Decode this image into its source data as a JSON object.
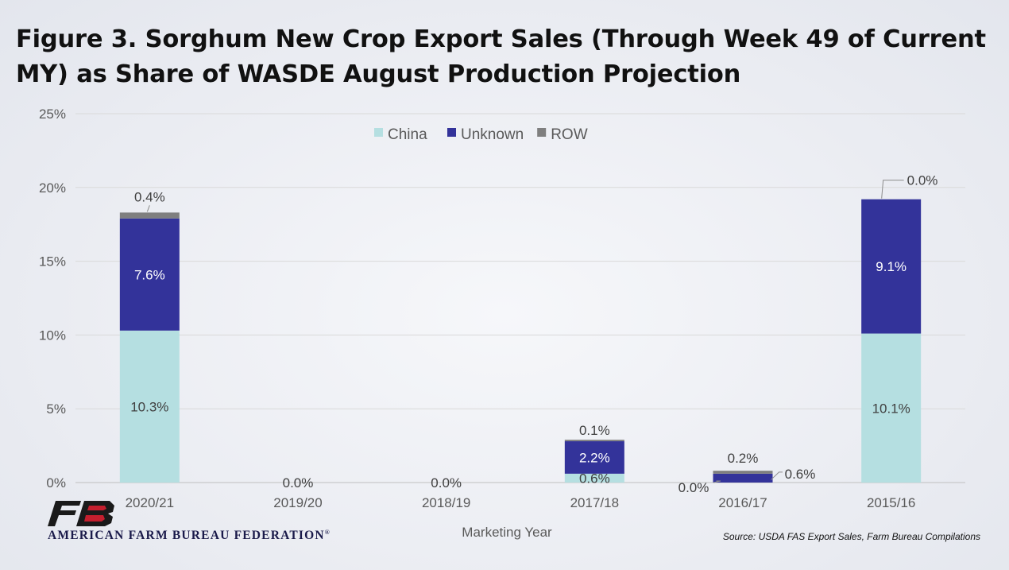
{
  "title": "Figure 3. Sorghum New Crop Export Sales (Through Week 49 of Current MY) as Share of WASDE August Production Projection",
  "source": "Source: USDA FAS Export Sales, Farm Bureau Compilations",
  "logo": {
    "text": "AMERICAN FARM BUREAU FEDERATION",
    "mark": "FB",
    "registered": "®"
  },
  "colors": {
    "China": "#b5dfe1",
    "Unknown": "#33339a",
    "ROW": "#7f7f7f"
  },
  "chart_data": {
    "type": "bar",
    "stacked": true,
    "categories": [
      "2020/21",
      "2019/20",
      "2018/19",
      "2017/18",
      "2016/17",
      "2015/16"
    ],
    "series": [
      {
        "name": "China",
        "values": [
          10.3,
          0,
          0,
          0.6,
          0.0,
          10.1
        ]
      },
      {
        "name": "Unknown",
        "values": [
          7.6,
          0,
          0,
          2.2,
          0.6,
          9.1
        ]
      },
      {
        "name": "ROW",
        "values": [
          0.4,
          0,
          0,
          0.1,
          0.2,
          0.0
        ]
      }
    ],
    "data_labels": [
      {
        "category": "2020/21",
        "labels": [
          "10.3%",
          "7.6%",
          "0.4%"
        ]
      },
      {
        "category": "2019/20",
        "labels": [
          "0.0%"
        ]
      },
      {
        "category": "2018/19",
        "labels": [
          "0.0%"
        ]
      },
      {
        "category": "2017/18",
        "labels": [
          "0.6%",
          "2.2%",
          "0.1%"
        ]
      },
      {
        "category": "2016/17",
        "labels": [
          "0.0%",
          "0.6%",
          "0.2%"
        ]
      },
      {
        "category": "2015/16",
        "labels": [
          "10.1%",
          "9.1%",
          "0.0%"
        ]
      }
    ],
    "xlabel": "Marketing Year",
    "ylabel": "",
    "ylim": [
      0,
      25
    ],
    "yticks": [
      "0%",
      "5%",
      "10%",
      "15%",
      "20%",
      "25%"
    ],
    "legend_position": "top",
    "grid": true
  }
}
